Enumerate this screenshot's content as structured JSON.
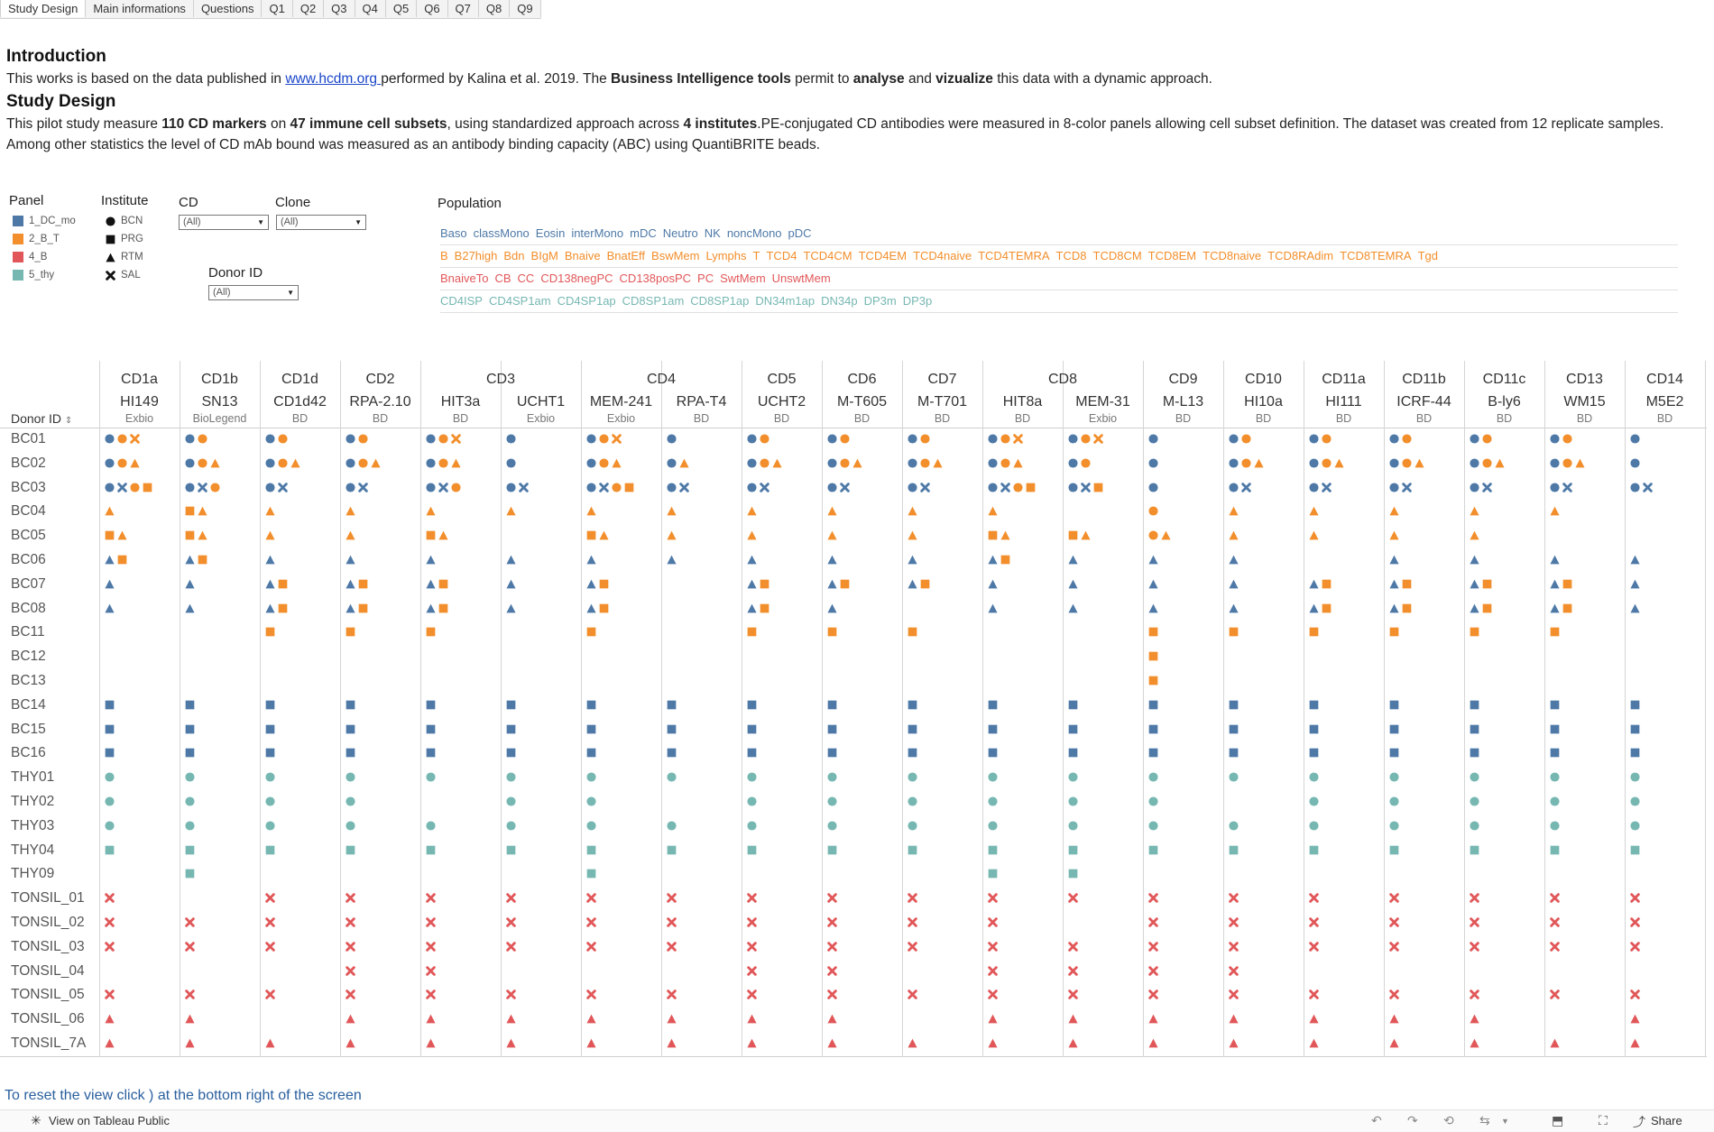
{
  "tabs": [
    "Study Design",
    "Main informations",
    "Questions",
    "Q1",
    "Q2",
    "Q3",
    "Q4",
    "Q5",
    "Q6",
    "Q7",
    "Q8",
    "Q9"
  ],
  "intro": {
    "heading": "Introduction",
    "text1": "This works is based on the data published in ",
    "link": "www.hcdm.org ",
    "text2": " performed by Kalina et al. 2019. The ",
    "bold1": "Business Intelligence tools",
    "text3": " permit to ",
    "bold2": "analyse",
    "text4": " and ",
    "bold3": "vizualize",
    "text5": " this data with a dynamic approach."
  },
  "study": {
    "heading": "Study Design",
    "t1": "This pilot study measure ",
    "b1": "110 CD markers",
    "t2": " on ",
    "b2": "47 immune cell subsets",
    "t3": ", using standardized approach across ",
    "b3": "4 institutes",
    "t4": ".PE-conjugated CD antibodies were measured in 8-color panels allowing cell subset definition. The dataset was created from 12 replicate samples. Among other statistics the level of CD mAb bound was measured as an antibody binding capacity (ABC) using QuantiBRITE beads."
  },
  "filters": {
    "panel": {
      "title": "Panel",
      "items": [
        {
          "label": "1_DC_mo",
          "color": "#4e79a7"
        },
        {
          "label": "2_B_T",
          "color": "#f28e2b"
        },
        {
          "label": "4_B",
          "color": "#e15759"
        },
        {
          "label": "5_thy",
          "color": "#76b7b2"
        }
      ]
    },
    "institute": {
      "title": "Institute",
      "items": [
        {
          "label": "BCN",
          "shape": "circle-icon"
        },
        {
          "label": "PRG",
          "shape": "square-icon"
        },
        {
          "label": "RTM",
          "shape": "triangle-icon"
        },
        {
          "label": "SAL",
          "shape": "cross-icon"
        }
      ]
    },
    "cd": {
      "title": "CD",
      "value": "(All)"
    },
    "clone": {
      "title": "Clone",
      "value": "(All)"
    },
    "donor": {
      "title": "Donor ID",
      "value": "(All)"
    },
    "population": {
      "title": "Population",
      "rows": [
        {
          "color": "#4e79a7",
          "items": [
            "Baso",
            "classMono",
            "Eosin",
            "interMono",
            "mDC",
            "Neutro",
            "NK",
            "noncMono",
            "pDC"
          ]
        },
        {
          "color": "#f28e2b",
          "items": [
            "B",
            "B27high",
            "Bdn",
            "BIgM",
            "Bnaive",
            "BnatEff",
            "BswMem",
            "Lymphs",
            "T",
            "TCD4",
            "TCD4CM",
            "TCD4EM",
            "TCD4naive",
            "TCD4TEMRA",
            "TCD8",
            "TCD8CM",
            "TCD8EM",
            "TCD8naive",
            "TCD8RAdim",
            "TCD8TEMRA",
            "Tgd"
          ]
        },
        {
          "color": "#e15759",
          "items": [
            "BnaiveTo",
            "CB",
            "CC",
            "CD138negPC",
            "CD138posPC",
            "PC",
            "SwtMem",
            "UnswtMem"
          ]
        },
        {
          "color": "#76b7b2",
          "items": [
            "CD4ISP",
            "CD4SP1am",
            "CD4SP1ap",
            "CD8SP1am",
            "CD8SP1ap",
            "DN34m1ap",
            "DN34p",
            "DP3m",
            "DP3p"
          ]
        }
      ]
    }
  },
  "table": {
    "row_header": "Donor ID",
    "cd_groups": [
      {
        "cd": "CD1a",
        "span": 1
      },
      {
        "cd": "CD1b",
        "span": 1
      },
      {
        "cd": "CD1d",
        "span": 1
      },
      {
        "cd": "CD2",
        "span": 1
      },
      {
        "cd": "CD3",
        "span": 2
      },
      {
        "cd": "CD4",
        "span": 2
      },
      {
        "cd": "CD5",
        "span": 1
      },
      {
        "cd": "CD6",
        "span": 1
      },
      {
        "cd": "CD7",
        "span": 1
      },
      {
        "cd": "CD8",
        "span": 2
      },
      {
        "cd": "CD9",
        "span": 1
      },
      {
        "cd": "CD10",
        "span": 1
      },
      {
        "cd": "CD11a",
        "span": 1
      },
      {
        "cd": "CD11b",
        "span": 1
      },
      {
        "cd": "CD11c",
        "span": 1
      },
      {
        "cd": "CD13",
        "span": 1
      },
      {
        "cd": "CD14",
        "span": 1
      }
    ],
    "clones": [
      {
        "clone": "HI149",
        "vendor": "Exbio"
      },
      {
        "clone": "SN13",
        "vendor": "BioLegend"
      },
      {
        "clone": "CD1d42",
        "vendor": "BD"
      },
      {
        "clone": "RPA-2.10",
        "vendor": "BD"
      },
      {
        "clone": "HIT3a",
        "vendor": "BD"
      },
      {
        "clone": "UCHT1",
        "vendor": "Exbio"
      },
      {
        "clone": "MEM-241",
        "vendor": "Exbio"
      },
      {
        "clone": "RPA-T4",
        "vendor": "BD"
      },
      {
        "clone": "UCHT2",
        "vendor": "BD"
      },
      {
        "clone": "M-T605",
        "vendor": "BD"
      },
      {
        "clone": "M-T701",
        "vendor": "BD"
      },
      {
        "clone": "HIT8a",
        "vendor": "BD"
      },
      {
        "clone": "MEM-31",
        "vendor": "Exbio"
      },
      {
        "clone": "M-L13",
        "vendor": "BD"
      },
      {
        "clone": "HI10a",
        "vendor": "BD"
      },
      {
        "clone": "HI111",
        "vendor": "BD"
      },
      {
        "clone": "ICRF-44",
        "vendor": "BD"
      },
      {
        "clone": "B-ly6",
        "vendor": "BD"
      },
      {
        "clone": "WM15",
        "vendor": "BD"
      },
      {
        "clone": "M5E2",
        "vendor": "BD"
      }
    ],
    "rows": [
      {
        "id": "BC01",
        "cells": [
          "bC oC oX",
          "bC oC",
          "bC oC",
          "bC oC",
          "bC oC oX",
          "bC",
          "bC oC oX",
          "bC",
          "bC oC",
          "bC oC",
          "bC oC",
          "bC oC oX",
          "bC oC oX",
          "bC",
          "bC oC",
          "bC oC",
          "bC oC",
          "bC oC",
          "bC oC",
          "bC"
        ]
      },
      {
        "id": "BC02",
        "cells": [
          "bC oC oT",
          "bC oC oT",
          "bC oC oT",
          "bC oC oT",
          "bC oC oT",
          "bC",
          "bC oC oT",
          "bC oT",
          "bC oC oT",
          "bC oC oT",
          "bC oC oT",
          "bC oC oT",
          "bC oC",
          "bC",
          "bC oC oT",
          "bC oC oT",
          "bC oC oT",
          "bC oC oT",
          "bC oC oT",
          "bC"
        ]
      },
      {
        "id": "BC03",
        "cells": [
          "bC bX oC oS",
          "bC bX oC",
          "bC bX",
          "bC bX",
          "bC bX oC",
          "bC bX",
          "bC bX oC oS",
          "bC bX",
          "bC bX",
          "bC bX",
          "bC bX",
          "bC bX oC oS",
          "bC bX oS",
          "bC",
          "bC bX",
          "bC bX",
          "bC bX",
          "bC bX",
          "bC bX",
          "bC bX"
        ]
      },
      {
        "id": "BC04",
        "cells": [
          "oT",
          "oS oT",
          "oT",
          "oT",
          "oT",
          "oT",
          "oT",
          "oT",
          "oT",
          "oT",
          "oT",
          "oT",
          "",
          "oC",
          "oT",
          "oT",
          "oT",
          "oT",
          "oT",
          ""
        ]
      },
      {
        "id": "BC05",
        "cells": [
          "oS oT",
          "oS oT",
          "oT",
          "oT",
          "oS oT",
          "",
          "oS oT",
          "oT",
          "oT",
          "oT",
          "oT",
          "oS oT",
          "oS oT",
          "oC oT",
          "oT",
          "oT",
          "oT",
          "oT",
          "",
          ""
        ]
      },
      {
        "id": "BC06",
        "cells": [
          "bT oS",
          "bT oS",
          "bT",
          "bT",
          "bT",
          "bT",
          "bT",
          "bT",
          "bT",
          "bT",
          "bT",
          "bT oS",
          "bT",
          "bT",
          "bT",
          "",
          "bT",
          "bT",
          "bT",
          "bT"
        ]
      },
      {
        "id": "BC07",
        "cells": [
          "bT",
          "bT",
          "bT oS",
          "bT oS",
          "bT oS",
          "bT",
          "bT oS",
          "",
          "bT oS",
          "bT oS",
          "bT oS",
          "bT",
          "bT",
          "bT",
          "bT",
          "bT oS",
          "bT oS",
          "bT oS",
          "bT oS",
          "bT"
        ]
      },
      {
        "id": "BC08",
        "cells": [
          "bT",
          "bT",
          "bT oS",
          "bT oS",
          "bT oS",
          "bT",
          "bT oS",
          "",
          "bT oS",
          "bT",
          "",
          "bT",
          "bT",
          "bT",
          "bT",
          "bT oS",
          "bT oS",
          "bT oS",
          "bT oS",
          "bT"
        ]
      },
      {
        "id": "BC11",
        "cells": [
          "",
          "",
          "oS",
          "oS",
          "oS",
          "",
          "oS",
          "",
          "oS",
          "oS",
          "oS",
          "",
          "",
          "oS",
          "oS",
          "oS",
          "oS",
          "oS",
          "oS",
          ""
        ]
      },
      {
        "id": "BC12",
        "cells": [
          "",
          "",
          "",
          "",
          "",
          "",
          "",
          "",
          "",
          "",
          "",
          "",
          "",
          "oS",
          "",
          "",
          "",
          "",
          "",
          ""
        ]
      },
      {
        "id": "BC13",
        "cells": [
          "",
          "",
          "",
          "",
          "",
          "",
          "",
          "",
          "",
          "",
          "",
          "",
          "",
          "oS",
          "",
          "",
          "",
          "",
          "",
          ""
        ]
      },
      {
        "id": "BC14",
        "cells": [
          "bS",
          "bS",
          "bS",
          "bS",
          "bS",
          "bS",
          "bS",
          "bS",
          "bS",
          "bS",
          "bS",
          "bS",
          "bS",
          "bS",
          "bS",
          "bS",
          "bS",
          "bS",
          "bS",
          "bS"
        ]
      },
      {
        "id": "BC15",
        "cells": [
          "bS",
          "bS",
          "bS",
          "bS",
          "bS",
          "bS",
          "bS",
          "bS",
          "bS",
          "bS",
          "bS",
          "bS",
          "bS",
          "bS",
          "bS",
          "bS",
          "bS",
          "bS",
          "bS",
          "bS"
        ]
      },
      {
        "id": "BC16",
        "cells": [
          "bS",
          "bS",
          "bS",
          "bS",
          "bS",
          "bS",
          "bS",
          "bS",
          "bS",
          "bS",
          "bS",
          "bS",
          "bS",
          "bS",
          "bS",
          "bS",
          "bS",
          "bS",
          "bS",
          "bS"
        ]
      },
      {
        "id": "THY01",
        "cells": [
          "tC",
          "tC",
          "tC",
          "tC",
          "tC",
          "tC",
          "tC",
          "tC",
          "tC",
          "tC",
          "tC",
          "tC",
          "tC",
          "tC",
          "tC",
          "tC",
          "tC",
          "tC",
          "tC",
          "tC"
        ]
      },
      {
        "id": "THY02",
        "cells": [
          "tC",
          "tC",
          "tC",
          "tC",
          "",
          "tC",
          "tC",
          "",
          "tC",
          "tC",
          "tC",
          "tC",
          "tC",
          "tC",
          "",
          "tC",
          "tC",
          "tC",
          "tC",
          "tC"
        ]
      },
      {
        "id": "THY03",
        "cells": [
          "tC",
          "tC",
          "tC",
          "tC",
          "tC",
          "tC",
          "tC",
          "tC",
          "tC",
          "tC",
          "tC",
          "tC",
          "tC",
          "tC",
          "tC",
          "tC",
          "tC",
          "tC",
          "tC",
          "tC"
        ]
      },
      {
        "id": "THY04",
        "cells": [
          "tS",
          "tS",
          "tS",
          "tS",
          "tS",
          "tS",
          "tS",
          "tS",
          "tS",
          "tS",
          "tS",
          "tS",
          "tS",
          "tS",
          "tS",
          "tS",
          "tS",
          "tS",
          "tS",
          "tS"
        ]
      },
      {
        "id": "THY09",
        "cells": [
          "",
          "tS",
          "",
          "",
          "",
          "",
          "tS",
          "",
          "",
          "",
          "",
          "tS",
          "tS",
          "",
          "",
          "",
          "",
          "",
          "",
          ""
        ]
      },
      {
        "id": "TONSIL_01",
        "cells": [
          "rX",
          "",
          "rX",
          "rX",
          "rX",
          "rX",
          "rX",
          "rX",
          "rX",
          "rX",
          "rX",
          "rX",
          "rX",
          "rX",
          "rX",
          "rX",
          "rX",
          "rX",
          "rX",
          "rX"
        ]
      },
      {
        "id": "TONSIL_02",
        "cells": [
          "rX",
          "rX",
          "rX",
          "rX",
          "rX",
          "rX",
          "rX",
          "rX",
          "rX",
          "rX",
          "rX",
          "rX",
          "",
          "rX",
          "rX",
          "rX",
          "rX",
          "rX",
          "rX",
          "rX"
        ]
      },
      {
        "id": "TONSIL_03",
        "cells": [
          "rX",
          "rX",
          "rX",
          "rX",
          "rX",
          "rX",
          "rX",
          "rX",
          "rX",
          "rX",
          "rX",
          "rX",
          "rX",
          "rX",
          "rX",
          "rX",
          "rX",
          "rX",
          "rX",
          "rX"
        ]
      },
      {
        "id": "TONSIL_04",
        "cells": [
          "",
          "",
          "",
          "rX",
          "rX",
          "",
          "",
          "",
          "rX",
          "rX",
          "",
          "rX",
          "rX",
          "rX",
          "rX",
          "",
          "",
          "",
          "",
          ""
        ]
      },
      {
        "id": "TONSIL_05",
        "cells": [
          "rX",
          "rX",
          "rX",
          "rX",
          "rX",
          "rX",
          "rX",
          "rX",
          "rX",
          "rX",
          "rX",
          "rX",
          "rX",
          "rX",
          "rX",
          "rX",
          "rX",
          "rX",
          "rX",
          "rX"
        ]
      },
      {
        "id": "TONSIL_06",
        "cells": [
          "rT",
          "rT",
          "",
          "rT",
          "rT",
          "rT",
          "rT",
          "rT",
          "rT",
          "rT",
          "",
          "rT",
          "rT",
          "rT",
          "rT",
          "rT",
          "rT",
          "rT",
          "",
          "rT"
        ]
      },
      {
        "id": "TONSIL_7A",
        "cells": [
          "rT",
          "rT",
          "rT",
          "rT",
          "rT",
          "rT",
          "rT",
          "rT",
          "rT",
          "rT",
          "rT",
          "rT",
          "rT",
          "rT",
          "rT",
          "rT",
          "rT",
          "rT",
          "rT",
          "rT"
        ]
      }
    ]
  },
  "colors": {
    "blue": "#4e79a7",
    "orange": "#f28e2b",
    "red": "#e15759",
    "teal": "#76b7b2"
  },
  "reset_hint": "To reset the view click ) at the bottom right of the screen",
  "footer": {
    "tableau": "View on Tableau Public",
    "share": "Share"
  }
}
